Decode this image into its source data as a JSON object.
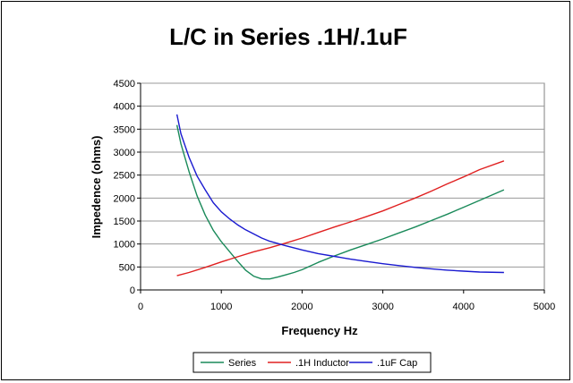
{
  "chart_data": {
    "type": "line",
    "title": "L/C in Series .1H/.1uF",
    "xlabel": "Frequency Hz",
    "ylabel": "Impedence (ohms)",
    "xlim": [
      0,
      5000
    ],
    "ylim": [
      0,
      4500
    ],
    "x_ticks": [
      0,
      1000,
      2000,
      3000,
      4000,
      5000
    ],
    "y_ticks": [
      0,
      500,
      1000,
      1500,
      2000,
      2500,
      3000,
      3500,
      4000,
      4500
    ],
    "grid": "horizontal",
    "legend_position": "bottom",
    "series": [
      {
        "name": "Series",
        "color": "#1a8a5a",
        "x": [
          450,
          500,
          600,
          700,
          800,
          900,
          1000,
          1100,
          1200,
          1300,
          1400,
          1500,
          1600,
          1700,
          1800,
          1900,
          2000,
          2200,
          2400,
          2600,
          2800,
          3000,
          3200,
          3400,
          3600,
          3800,
          4000,
          4200,
          4500
        ],
        "y": [
          3590,
          3180,
          2580,
          2050,
          1630,
          1300,
          1050,
          840,
          630,
          430,
          300,
          240,
          240,
          280,
          330,
          380,
          440,
          600,
          740,
          870,
          990,
          1110,
          1240,
          1370,
          1510,
          1650,
          1800,
          1950,
          2180
        ]
      },
      {
        "name": ".1H Inductor",
        "color": "#e02020",
        "x": [
          450,
          600,
          800,
          1000,
          1200,
          1400,
          1600,
          1800,
          2000,
          2200,
          2400,
          2600,
          2800,
          3000,
          3200,
          3400,
          3600,
          3800,
          4000,
          4200,
          4500
        ],
        "y": [
          310,
          380,
          490,
          610,
          720,
          830,
          920,
          1020,
          1130,
          1250,
          1370,
          1480,
          1600,
          1720,
          1860,
          2000,
          2150,
          2310,
          2460,
          2620,
          2810
        ]
      },
      {
        "name": ".1uF Cap",
        "color": "#1a1ad0",
        "x": [
          450,
          500,
          600,
          700,
          800,
          900,
          1000,
          1100,
          1200,
          1300,
          1400,
          1500,
          1600,
          1800,
          2000,
          2200,
          2400,
          2600,
          2800,
          3000,
          3200,
          3400,
          3600,
          3800,
          4000,
          4200,
          4500
        ],
        "y": [
          3820,
          3400,
          2890,
          2480,
          2180,
          1900,
          1700,
          1550,
          1420,
          1310,
          1220,
          1130,
          1060,
          960,
          870,
          790,
          730,
          670,
          620,
          570,
          530,
          490,
          460,
          430,
          410,
          390,
          380
        ]
      }
    ]
  }
}
